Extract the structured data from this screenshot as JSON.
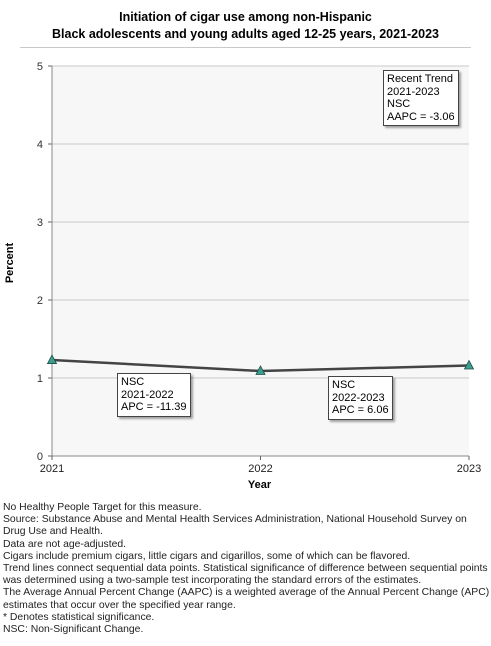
{
  "title_lines": [
    "Initiation of cigar use among non-Hispanic",
    "Black adolescents and young adults aged 12-25 years, 2021-2023"
  ],
  "chart_data": {
    "type": "line",
    "x": [
      2021,
      2022,
      2023
    ],
    "categories": [
      "2021",
      "2022",
      "2023"
    ],
    "series": [
      {
        "values": [
          1.23,
          1.09,
          1.16
        ]
      }
    ],
    "xlabel": "Year",
    "ylabel": "Percent",
    "ylim": [
      0,
      5
    ],
    "yticks": [
      "0",
      "1",
      "2",
      "3",
      "4",
      "5"
    ],
    "grid": true,
    "line_color": "#444444",
    "marker_color": "#3d9e8e",
    "plot_background": "#f7f7f7",
    "annotations": {
      "recent_trend": [
        "Recent Trend",
        "2021-2023",
        "NSC",
        "AAPC = -3.06"
      ],
      "segment1": [
        "NSC",
        "2021-2022",
        "APC = -11.39"
      ],
      "segment2": [
        "NSC",
        "2022-2023",
        "APC =  6.06"
      ]
    }
  },
  "notes": [
    "No Healthy People Target for this measure.",
    "Source: Substance Abuse and Mental Health Services Administration, National Household Survey on Drug Use and Health.",
    "Data are not age-adjusted.",
    "Cigars include premium cigars, little cigars and cigarillos, some of which can be flavored.",
    "Trend lines connect sequential data points. Statistical significance of difference between sequential points was determined using a two-sample test incorporating the standard errors of the estimates.",
    "The Average Annual Percent Change (AAPC) is a weighted average of the Annual Percent Change (APC) estimates that occur over the specified year range.",
    "* Denotes statistical significance.",
    "NSC: Non-Significant Change."
  ]
}
